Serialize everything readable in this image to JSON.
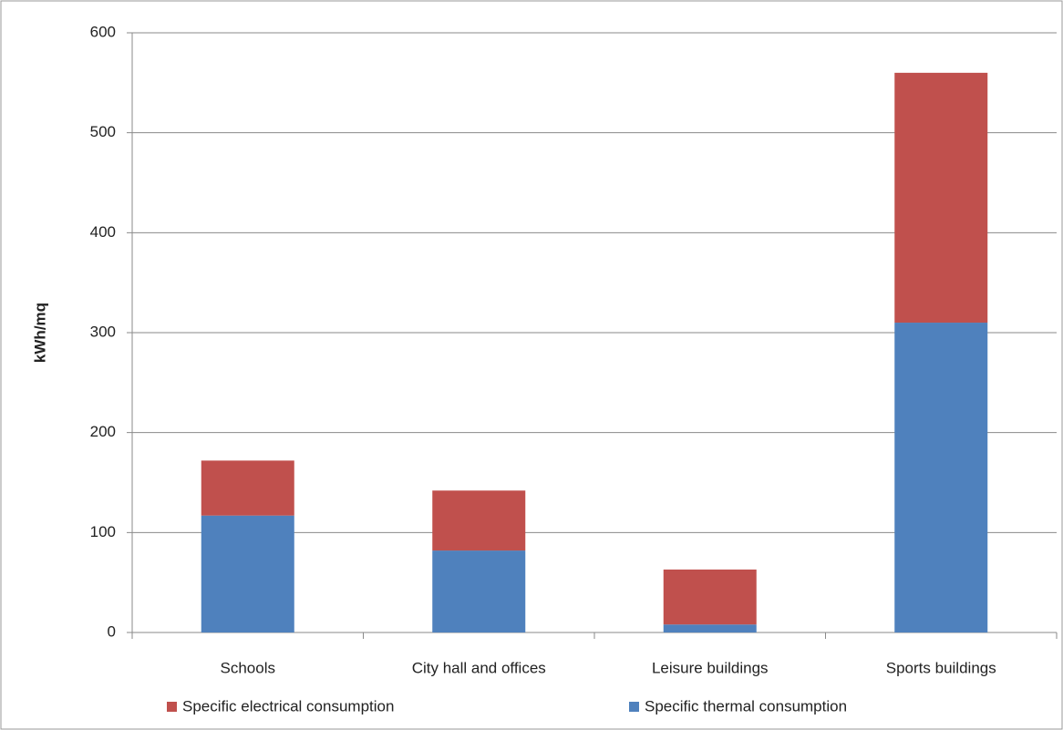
{
  "chart_data": {
    "type": "bar",
    "stacked": true,
    "y_label": "kWh/mq",
    "categories": [
      "Schools",
      "City hall and offices",
      "Leisure buildings",
      "Sports buildings"
    ],
    "series": [
      {
        "name": "Specific electrical consumption",
        "color": "#c0504d",
        "values": [
          55,
          60,
          55,
          250
        ]
      },
      {
        "name": "Specific thermal consumption",
        "color": "#4f81bd",
        "values": [
          117,
          82,
          8,
          310
        ]
      }
    ],
    "ylim": [
      0,
      600
    ],
    "yticks": [
      0,
      100,
      200,
      300,
      400,
      500,
      600
    ],
    "grid": true
  }
}
